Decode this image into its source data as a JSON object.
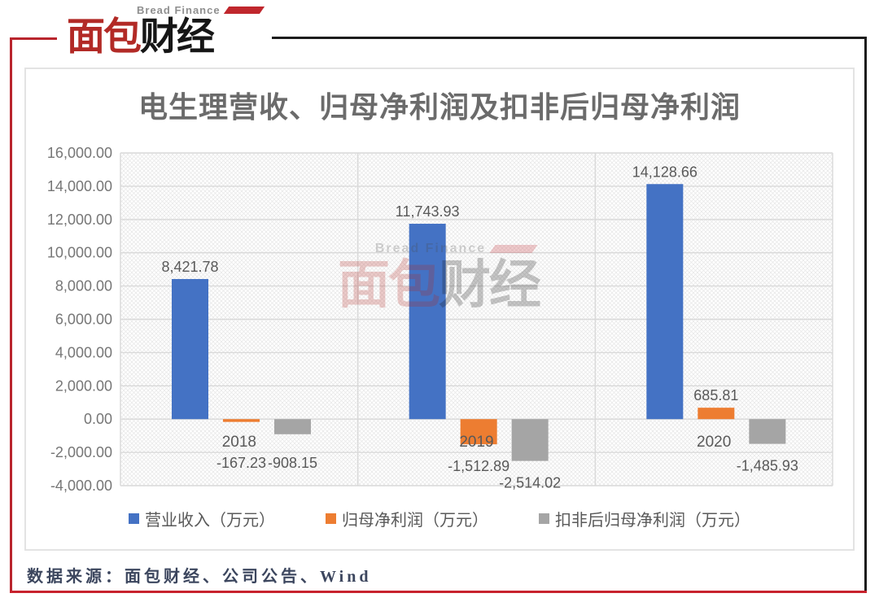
{
  "brand": {
    "en": "Bread Finance",
    "cn_red": "面包",
    "cn_dark": "财经"
  },
  "watermark": {
    "en": "Bread Finance",
    "cn_red": "面包",
    "cn_dark": "财经"
  },
  "chart_data": {
    "type": "bar",
    "title": "电生理营收、归母净利润及扣非后归母净利润",
    "categories": [
      "2018",
      "2019",
      "2020"
    ],
    "series": [
      {
        "name": "营业收入（万元）",
        "color": "#4472C4",
        "values": [
          8421.78,
          11743.93,
          14128.66
        ],
        "labels": [
          "8,421.78",
          "11,743.93",
          "14,128.66"
        ]
      },
      {
        "name": "归母净利润（万元）",
        "color": "#ED7D31",
        "values": [
          -167.23,
          -1512.89,
          685.81
        ],
        "labels": [
          "-167.23",
          "-1,512.89",
          "685.81"
        ]
      },
      {
        "name": "扣非后归母净利润（万元）",
        "color": "#A5A5A5",
        "values": [
          -908.15,
          -2514.02,
          -1485.93
        ],
        "labels": [
          "-908.15",
          "-2,514.02",
          "-1,485.93"
        ]
      }
    ],
    "xlabel": "",
    "ylabel": "",
    "ylim": [
      -4000,
      16000
    ],
    "ytick_step": 2000,
    "ytick_labels": [
      "16,000.00",
      "14,000.00",
      "12,000.00",
      "10,000.00",
      "8,000.00",
      "6,000.00",
      "4,000.00",
      "2,000.00",
      "0.00",
      "-2,000.00",
      "-4,000.00"
    ],
    "grid": true,
    "legend_position": "bottom",
    "colors": {
      "grid": "#d9d9d9",
      "tick_text": "#767676",
      "label_text": "#595959"
    }
  },
  "footer": {
    "source": "数据来源：面包财经、公司公告、Wind"
  }
}
